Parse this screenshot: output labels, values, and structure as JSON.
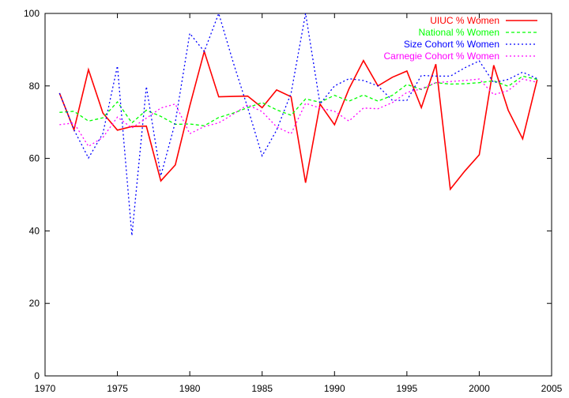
{
  "chart_data": {
    "type": "line",
    "title": "",
    "xlabel": "",
    "ylabel": "",
    "xlim": [
      1970,
      2005
    ],
    "ylim": [
      0,
      100
    ],
    "xticks": [
      1970,
      1975,
      1980,
      1985,
      1990,
      1995,
      2000,
      2005
    ],
    "yticks": [
      0,
      20,
      40,
      60,
      80,
      100
    ],
    "grid": false,
    "legend_position": "top-right",
    "x": [
      1971,
      1972,
      1973,
      1974,
      1975,
      1976,
      1977,
      1978,
      1979,
      1980,
      1981,
      1982,
      1983,
      1984,
      1985,
      1986,
      1987,
      1988,
      1989,
      1990,
      1991,
      1992,
      1993,
      1994,
      1995,
      1996,
      1997,
      1998,
      1999,
      2000,
      2001,
      2002,
      2003,
      2004
    ],
    "series": [
      {
        "name": "UIUC % Women",
        "color": "#ff0000",
        "style": "solid",
        "values": [
          78.0,
          67.9,
          84.5,
          72.5,
          67.8,
          68.8,
          68.9,
          53.8,
          58.2,
          74.5,
          89.5,
          77.0,
          77.1,
          77.2,
          74.0,
          78.9,
          77.0,
          53.3,
          75.0,
          69.3,
          79.2,
          87.0,
          80.0,
          82.4,
          84.1,
          74.0,
          86.0,
          51.5,
          56.5,
          61.0,
          85.7,
          73.3,
          65.4,
          81.7
        ]
      },
      {
        "name": "National % Women",
        "color": "#00ff00",
        "style": "dashed",
        "values": [
          72.7,
          73.0,
          70.3,
          71.2,
          75.6,
          69.8,
          73.3,
          71.6,
          69.4,
          69.5,
          69.0,
          71.3,
          72.5,
          74.0,
          75.4,
          73.4,
          71.9,
          76.4,
          75.5,
          77.4,
          75.8,
          77.5,
          75.8,
          77.4,
          80.4,
          79.0,
          80.9,
          80.5,
          80.6,
          80.9,
          81.4,
          79.9,
          82.7,
          81.8
        ]
      },
      {
        "name": "Size Cohort % Women",
        "color": "#0000ff",
        "style": "dotted",
        "values": [
          78.0,
          67.9,
          60.1,
          66.9,
          85.5,
          38.7,
          79.8,
          55.2,
          70.0,
          94.5,
          89.5,
          100.0,
          86.5,
          74.0,
          60.7,
          67.8,
          78.0,
          100.0,
          75.0,
          80.0,
          82.0,
          81.5,
          80.0,
          76.0,
          76.0,
          82.9,
          82.7,
          82.7,
          85.0,
          86.9,
          80.9,
          81.8,
          83.8,
          82.0
        ]
      },
      {
        "name": "Carnegie Cohort % Women",
        "color": "#ff00ff",
        "style": "dotted",
        "values": [
          69.3,
          69.8,
          63.3,
          65.8,
          71.4,
          68.4,
          71.1,
          73.9,
          75.0,
          66.8,
          68.8,
          69.8,
          72.2,
          74.8,
          72.9,
          68.7,
          66.8,
          75.2,
          73.9,
          73.0,
          70.3,
          73.9,
          73.7,
          75.4,
          78.2,
          79.2,
          80.9,
          81.2,
          81.5,
          81.9,
          77.6,
          78.7,
          81.9,
          81.0
        ]
      }
    ]
  }
}
